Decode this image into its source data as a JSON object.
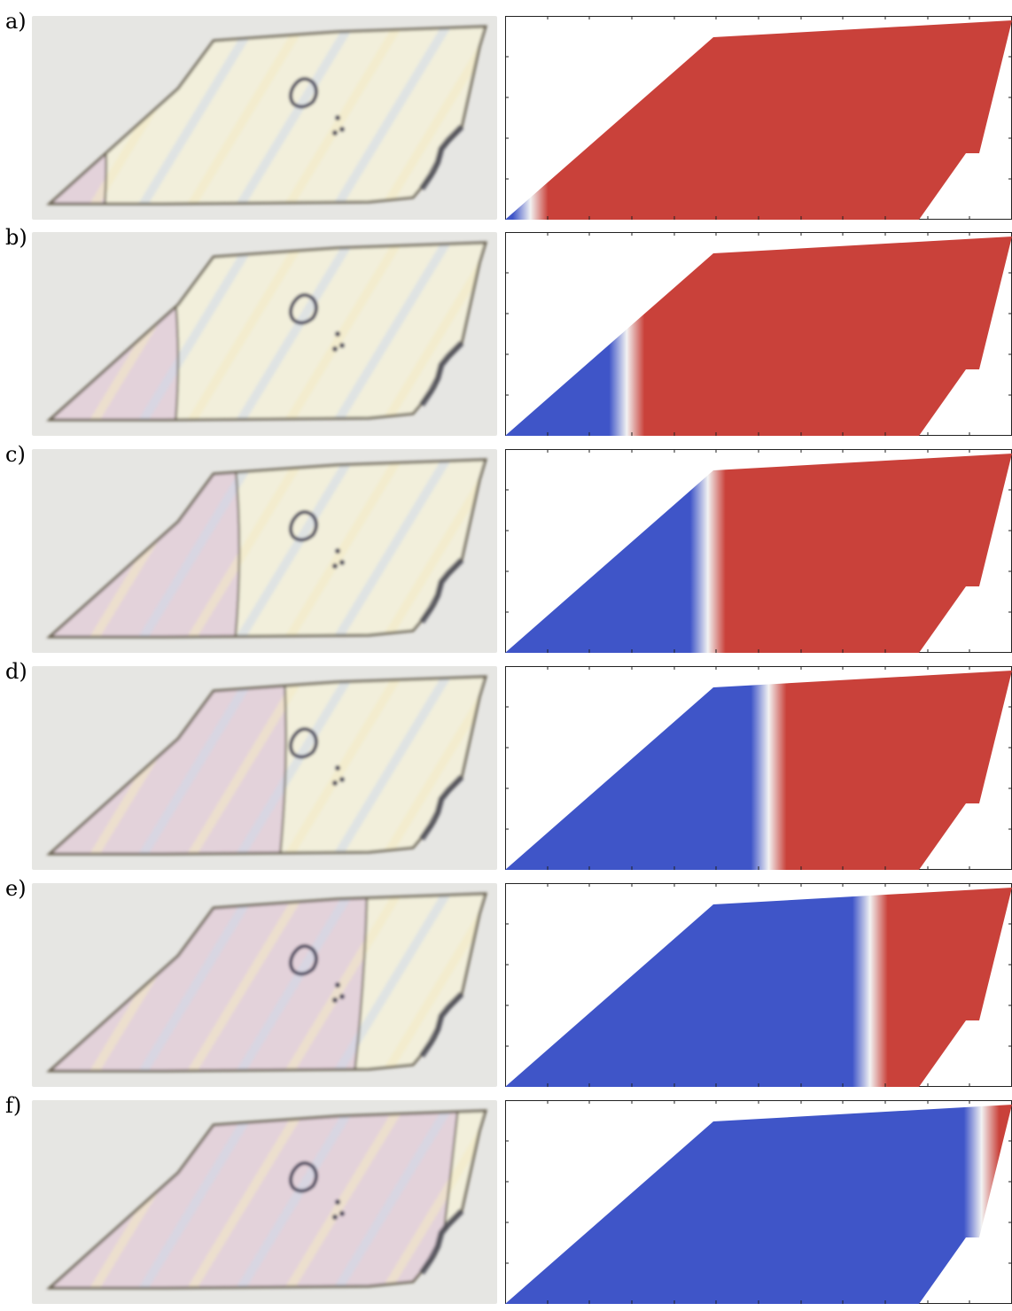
{
  "figure": {
    "panels": [
      {
        "label": "a)",
        "sim_boundary": 0.05
      },
      {
        "label": "b)",
        "sim_boundary": 0.24
      },
      {
        "label": "c)",
        "sim_boundary": 0.4
      },
      {
        "label": "d)",
        "sim_boundary": 0.52
      },
      {
        "label": "e)",
        "sim_boundary": 0.72
      },
      {
        "label": "f)",
        "sim_boundary": 0.94
      }
    ],
    "colors": {
      "phase_a": "#3f55c8",
      "phase_b": "#c9413a",
      "photo_bg": "#e6e6e3",
      "crystal_light": "#f2efdb",
      "crystal_pink": "#e3d2da",
      "edge": "#6b6452"
    }
  }
}
